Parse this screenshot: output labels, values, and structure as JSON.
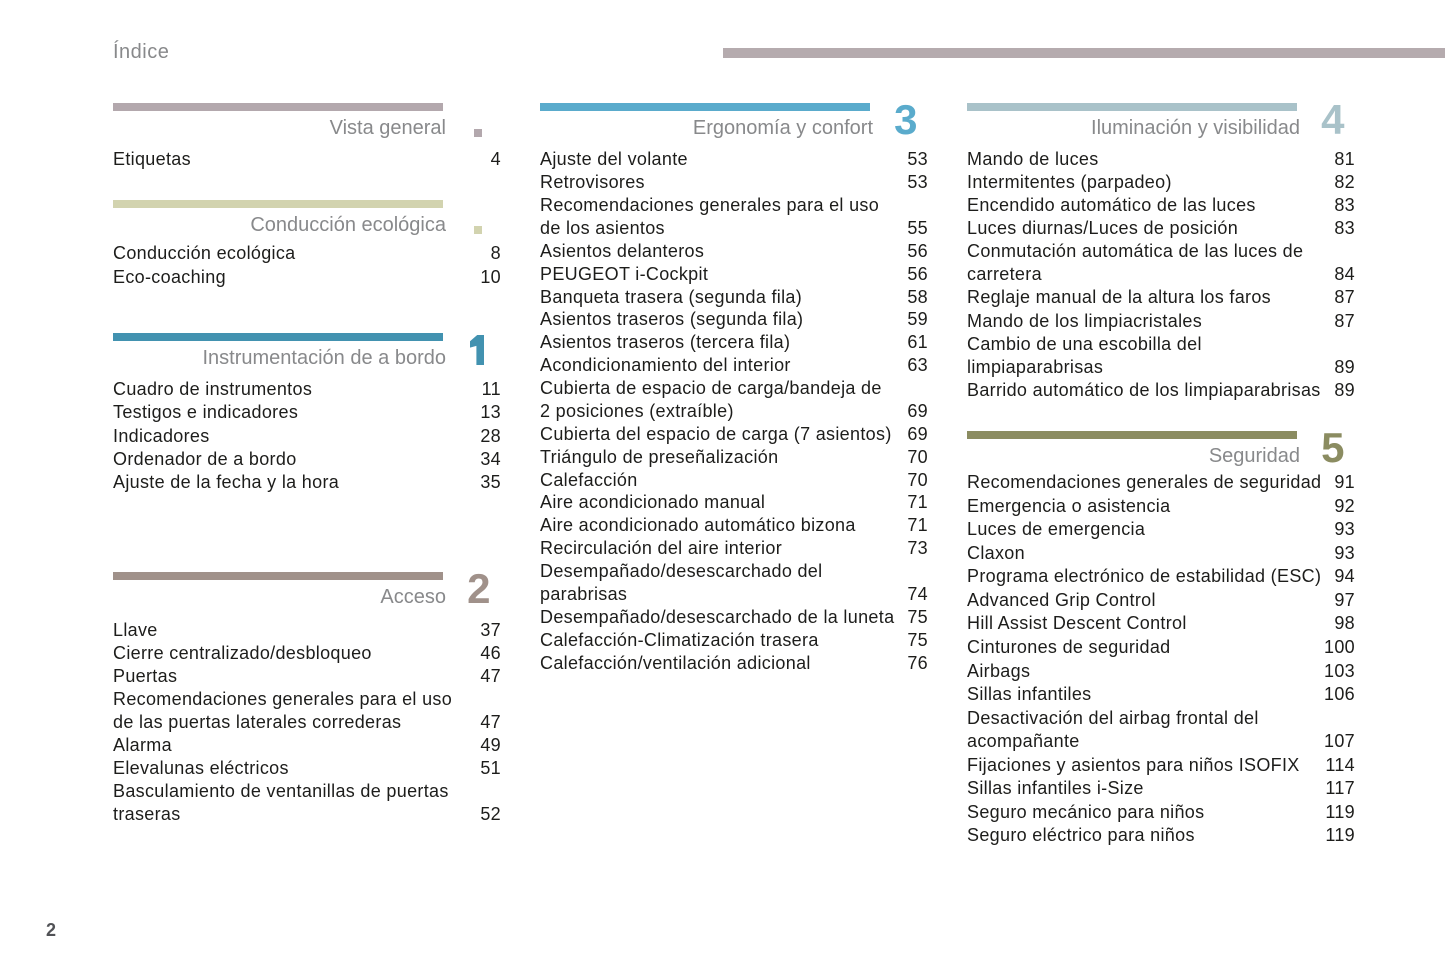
{
  "page": {
    "title": "Índice",
    "page_number": "2",
    "top_rule_color": "#b5abae",
    "text_color": "#1d1d1b",
    "heading_color": "#88898b"
  },
  "sections": [
    {
      "title": "Vista general",
      "marker": "square",
      "color": "#b3a8ad",
      "entries": [
        {
          "label": "Etiquetas",
          "page": "4"
        }
      ]
    },
    {
      "title": "Conducción ecológica",
      "marker": "square",
      "color": "#d2d3af",
      "entries": [
        {
          "label": "Conducción ecológica",
          "page": "8"
        },
        {
          "label": "Eco-coaching",
          "page": "10"
        }
      ]
    },
    {
      "title": "Instrumentación de a bordo",
      "marker": "number",
      "number": "1",
      "color": "#4292b0",
      "entries": [
        {
          "label": "Cuadro de instrumentos",
          "page": "11"
        },
        {
          "label": "Testigos e indicadores",
          "page": "13"
        },
        {
          "label": "Indicadores",
          "page": "28"
        },
        {
          "label": "Ordenador de a bordo",
          "page": "34"
        },
        {
          "label": "Ajuste de la fecha y la hora",
          "page": "35"
        }
      ]
    },
    {
      "title": "Acceso",
      "marker": "number",
      "number": "2",
      "color": "#a0918a",
      "entries": [
        {
          "label": "Llave",
          "page": "37"
        },
        {
          "label": "Cierre centralizado/desbloqueo",
          "page": "46"
        },
        {
          "label": "Puertas",
          "page": "47"
        },
        {
          "label": "Recomendaciones generales para el uso\nde las puertas laterales correderas",
          "page": "47"
        },
        {
          "label": "Alarma",
          "page": "49"
        },
        {
          "label": "Elevalunas eléctricos",
          "page": "51"
        },
        {
          "label": "Basculamiento de ventanillas de puertas\ntraseras",
          "page": "52"
        }
      ]
    },
    {
      "title": "Ergonomía y confort",
      "marker": "number",
      "number": "3",
      "color": "#5aabcc",
      "entries": [
        {
          "label": "Ajuste del volante",
          "page": "53"
        },
        {
          "label": "Retrovisores",
          "page": "53"
        },
        {
          "label": "Recomendaciones generales para el uso\nde los asientos",
          "page": "55"
        },
        {
          "label": "Asientos delanteros",
          "page": "56"
        },
        {
          "label": "PEUGEOT i-Cockpit",
          "page": "56"
        },
        {
          "label": "Banqueta trasera (segunda fila)",
          "page": "58"
        },
        {
          "label": "Asientos traseros (segunda fila)",
          "page": "59"
        },
        {
          "label": "Asientos traseros (tercera fila)",
          "page": "61"
        },
        {
          "label": "Acondicionamiento del interior",
          "page": "63"
        },
        {
          "label": "Cubierta de espacio de carga/bandeja de\n2 posiciones (extraíble)",
          "page": "69"
        },
        {
          "label": "Cubierta del espacio de carga (7 asientos)",
          "page": "69"
        },
        {
          "label": "Triángulo de preseñalización",
          "page": "70"
        },
        {
          "label": "Calefacción",
          "page": "70"
        },
        {
          "label": "Aire acondicionado manual",
          "page": "71"
        },
        {
          "label": "Aire acondicionado automático bizona",
          "page": "71"
        },
        {
          "label": "Recirculación del aire interior",
          "page": "73"
        },
        {
          "label": "Desempañado/desescarchado del\nparabrisas",
          "page": "74"
        },
        {
          "label": "Desempañado/desescarchado de la luneta",
          "page": "75"
        },
        {
          "label": "Calefacción-Climatización trasera",
          "page": "75"
        },
        {
          "label": "Calefacción/ventilación adicional",
          "page": "76"
        }
      ]
    },
    {
      "title": "Iluminación y visibilidad",
      "marker": "number",
      "number": "4",
      "color": "#a9c2c9",
      "entries": [
        {
          "label": "Mando de luces",
          "page": "81"
        },
        {
          "label": "Intermitentes (parpadeo)",
          "page": "82"
        },
        {
          "label": "Encendido automático de las luces",
          "page": "83"
        },
        {
          "label": "Luces diurnas/Luces de posición",
          "page": "83"
        },
        {
          "label": "Conmutación automática de las luces de\ncarretera",
          "page": "84"
        },
        {
          "label": "Reglaje manual de la altura los faros",
          "page": "87"
        },
        {
          "label": "Mando de los limpiacristales",
          "page": "87"
        },
        {
          "label": "Cambio de una escobilla del\nlimpiaparabrisas",
          "page": "89"
        },
        {
          "label": "Barrido automático de los limpiaparabrisas",
          "page": "89"
        }
      ]
    },
    {
      "title": "Seguridad",
      "marker": "number",
      "number": "5",
      "color": "#8b8c61",
      "entries": [
        {
          "label": "Recomendaciones generales de seguridad",
          "page": "91"
        },
        {
          "label": "Emergencia o asistencia",
          "page": "92"
        },
        {
          "label": "Luces de emergencia",
          "page": "93"
        },
        {
          "label": "Claxon",
          "page": "93"
        },
        {
          "label": "Programa electrónico de estabilidad (ESC)",
          "page": "94"
        },
        {
          "label": "Advanced Grip Control",
          "page": "97"
        },
        {
          "label": "Hill Assist Descent Control",
          "page": "98"
        },
        {
          "label": "Cinturones de seguridad",
          "page": "100"
        },
        {
          "label": "Airbags",
          "page": "103"
        },
        {
          "label": "Sillas infantiles",
          "page": "106"
        },
        {
          "label": "Desactivación del airbag frontal del\nacompañante",
          "page": "107"
        },
        {
          "label": "Fijaciones y asientos para niños ISOFIX",
          "page": "114"
        },
        {
          "label": "Sillas infantiles i-Size",
          "page": "117"
        },
        {
          "label": "Seguro mecánico para niños",
          "page": "119"
        },
        {
          "label": "Seguro eléctrico para niños",
          "page": "119"
        }
      ]
    }
  ]
}
